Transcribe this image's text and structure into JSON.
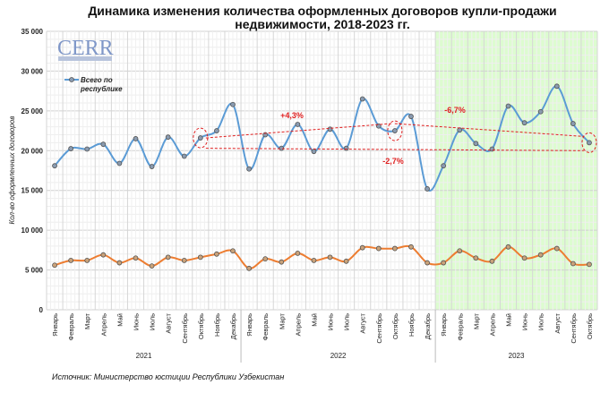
{
  "chart_data": {
    "type": "line",
    "title": "Динамика изменения количества оформленных договоров купли-продажи недвижимости, 2018-2023 гг.",
    "ylabel": "Кол-во оформленных договоров",
    "ylim": [
      0,
      35000
    ],
    "yticks": [
      "0",
      "5 000",
      "10 000",
      "15 000",
      "20 000",
      "25 000",
      "30 000",
      "35 000"
    ],
    "grid": true,
    "legend_position": "top-left",
    "months": [
      "Январь",
      "Февраль",
      "Март",
      "Апрель",
      "Май",
      "Июнь",
      "Июль",
      "Август",
      "Сентябрь",
      "Октябрь",
      "Ноябрь",
      "Декабрь",
      "Январь",
      "Февраль",
      "Март",
      "Апрель",
      "Май",
      "Июнь",
      "Июль",
      "Август",
      "Сентябрь",
      "Октябрь",
      "Ноябрь",
      "Декабрь",
      "Январь",
      "Февраль",
      "Март",
      "Апрель",
      "Май",
      "Июнь",
      "Июль",
      "Август",
      "Сентябрь",
      "Октябрь"
    ],
    "years": [
      {
        "label": "2021",
        "months": 12
      },
      {
        "label": "2022",
        "months": 12
      },
      {
        "label": "2023",
        "months": 10
      }
    ],
    "highlight_year": "2023",
    "series": [
      {
        "name": "Всего по республике",
        "color": "#5b9bd5",
        "values": [
          18100,
          20250,
          20200,
          20800,
          18400,
          21500,
          18000,
          21700,
          19300,
          21600,
          22500,
          25800,
          17700,
          22000,
          20300,
          23300,
          19900,
          22700,
          20300,
          26500,
          23100,
          22500,
          24300,
          15200,
          18100,
          22600,
          20900,
          20200,
          25600,
          23500,
          24900,
          28100,
          23400,
          21000
        ]
      },
      {
        "color": "#ed7d31",
        "values": [
          5600,
          6200,
          6200,
          6900,
          5900,
          6500,
          5500,
          6600,
          6200,
          6600,
          7000,
          7400,
          5200,
          6400,
          6000,
          7100,
          6200,
          6600,
          6100,
          7800,
          7700,
          7700,
          7900,
          5900,
          5900,
          7400,
          6500,
          6100,
          7900,
          6500,
          6900,
          7700,
          5800,
          5700
        ]
      }
    ],
    "annotations": [
      {
        "text": "+4,3%",
        "color": "#e02020"
      },
      {
        "text": "-6,7%",
        "color": "#e02020"
      },
      {
        "text": "-2,7%",
        "color": "#e02020"
      }
    ]
  },
  "logo": {
    "text": "CERR"
  },
  "source": "Источник: Министерство юстиции Республики Узбекистан"
}
